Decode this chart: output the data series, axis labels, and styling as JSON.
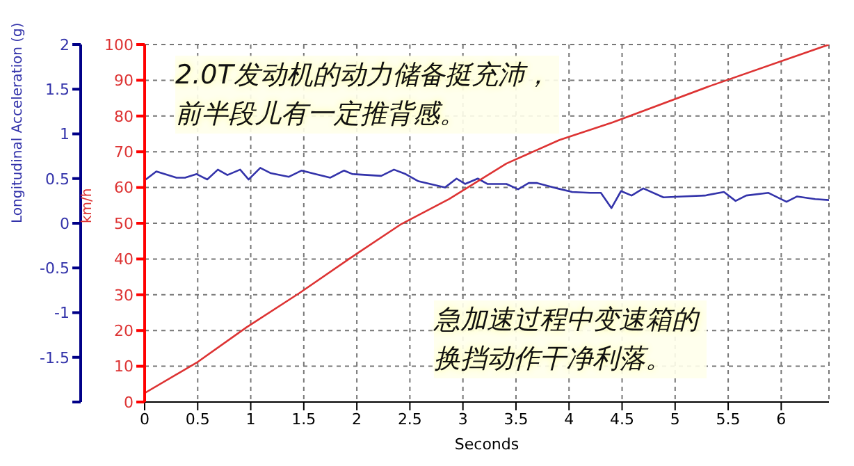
{
  "chart_data": {
    "type": "line",
    "annotations": [
      "2.0T发动机的动力储备挺充沛，前半段儿有一定推背感。",
      "急加速过程中变速箱的换挡动作干净利落。"
    ],
    "xlabel": "Seconds",
    "ylabel": "Longitudinal Acceleration (g)",
    "y2label": "km/h",
    "xlim": [
      0,
      6.45
    ],
    "xticks": [
      0,
      0.5,
      1,
      1.5,
      2,
      2.5,
      3,
      3.5,
      4,
      4.5,
      5,
      5.5,
      6
    ],
    "ylim": [
      -2,
      2
    ],
    "yticks": [
      {
        "value": -2,
        "label": null
      },
      -1.5,
      -1,
      -0.5,
      0,
      0.5,
      1,
      1.5,
      2
    ],
    "y2lim": [
      0,
      100
    ],
    "y2ticks": [
      0,
      10,
      20,
      30,
      40,
      50,
      60,
      70,
      80,
      90,
      100
    ],
    "grid": true,
    "legend": false,
    "marker": "none",
    "line_style": "solid",
    "series": [
      {
        "color": "#3333aa",
        "x": [
          0,
          0.11,
          0.3,
          0.38,
          0.49,
          0.59,
          0.69,
          0.78,
          0.9,
          0.98,
          1.09,
          1.19,
          1.36,
          1.48,
          1.61,
          1.75,
          1.88,
          1.96,
          2.23,
          2.35,
          2.46,
          2.58,
          2.83,
          2.94,
          3.02,
          3.14,
          3.23,
          3.41,
          3.52,
          3.62,
          3.7,
          3.89,
          4.03,
          4.2,
          4.3,
          4.4,
          4.49,
          4.59,
          4.7,
          4.89,
          5.07,
          5.28,
          5.46,
          5.57,
          5.67,
          5.88,
          6.05,
          6.15,
          6.32,
          6.45
        ],
        "values": [
          0.48,
          0.58,
          0.51,
          0.51,
          0.55,
          0.49,
          0.6,
          0.54,
          0.6,
          0.49,
          0.62,
          0.56,
          0.52,
          0.59,
          0.55,
          0.51,
          0.59,
          0.55,
          0.53,
          0.6,
          0.55,
          0.47,
          0.4,
          0.5,
          0.44,
          0.5,
          0.44,
          0.44,
          0.38,
          0.45,
          0.45,
          0.39,
          0.35,
          0.34,
          0.34,
          0.17,
          0.36,
          0.31,
          0.39,
          0.29,
          0.3,
          0.31,
          0.35,
          0.25,
          0.31,
          0.34,
          0.24,
          0.3,
          0.27,
          0.26
        ]
      },
      {
        "color": "#dd3333",
        "axis": "y2",
        "x": [
          0,
          0.49,
          0.96,
          1.46,
          1.94,
          2.42,
          2.87,
          3.41,
          3.91,
          4.41,
          5.32,
          6.45
        ],
        "values": [
          2.5,
          11,
          20.9,
          30.5,
          40.3,
          49.8,
          56.8,
          66.7,
          73.3,
          78.2,
          88.3,
          100
        ]
      }
    ]
  }
}
